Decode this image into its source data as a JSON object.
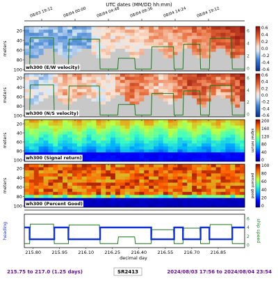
{
  "top_axis": {
    "label": "UTC dates (MM/DD hh:mm)",
    "ticks": [
      "08/03 19:12",
      "08/04 00:00",
      "08/04 04:48",
      "08/04 09:36",
      "08/04 14:24",
      "08/04 19:12"
    ]
  },
  "panels": [
    {
      "label": "wh300 (E/W velocity)",
      "ylabel": "meters",
      "yticks": [
        "20",
        "40",
        "60",
        "80",
        "100"
      ],
      "colorbar_ticks": [
        "0.6",
        "0.4",
        "0.2",
        "0.0",
        "-0.2",
        "-0.4",
        "-0.6"
      ],
      "right_axis_ticks": [
        "6",
        "4",
        "2",
        "0"
      ],
      "colormap": "blue-white-red"
    },
    {
      "label": "wh300 (N/S velocity)",
      "ylabel": "meters",
      "yticks": [
        "20",
        "40",
        "60",
        "80",
        "100"
      ],
      "colorbar_ticks": [
        "0.6",
        "0.4",
        "0.2",
        "0.0",
        "-0.2",
        "-0.4",
        "-0.6"
      ],
      "right_axis_ticks": [
        "6",
        "4",
        "2",
        "0"
      ],
      "colormap": "blue-white-red"
    },
    {
      "label": "wh300 (Signal return)",
      "ylabel": "meters",
      "yticks": [
        "20",
        "40",
        "60",
        "80",
        "100"
      ],
      "colorbar_label": "signal return",
      "colorbar_ticks": [
        "200",
        "160",
        "120",
        "80",
        "40",
        "0"
      ],
      "colormap": "jet"
    },
    {
      "label": "wh300 (Percent Good)",
      "ylabel": "meters",
      "yticks": [
        "20",
        "40",
        "60",
        "80",
        "100"
      ],
      "colorbar_label": "percent good",
      "colorbar_ticks": [
        "100",
        "80",
        "60",
        "40",
        "20",
        "0"
      ],
      "colormap": "jet"
    }
  ],
  "bottom_panel": {
    "ylabel_left": "heading",
    "ylabel_right": "ship speed",
    "right_ticks": [
      "6",
      "4",
      "2",
      "0"
    ],
    "xlabel": "decimal day",
    "xticks": [
      "215.80",
      "215.95",
      "216.10",
      "216.25",
      "216.40",
      "216.55",
      "216.70",
      "216.85"
    ]
  },
  "footer": {
    "range": "215.75 to 217.0 (1.25 days)",
    "cruise": "SR2413",
    "dates": "2024/08/03 17:56 to 2024/08/04 23:54"
  },
  "colors": {
    "footer_text": "#6a0f9a",
    "ship_speed": "#1a7a1a",
    "heading": "#1030d0",
    "bad_data": "#c8c8c8"
  },
  "chart_data": {
    "type": "heatmap",
    "x_unit": "decimal day",
    "xlim": [
      215.75,
      217.0
    ],
    "depth_ylim_m": [
      100,
      10
    ],
    "ship_speed_ylim_kn": [
      0,
      7
    ],
    "ship_speed_segments": [
      {
        "x": [
          215.78,
          215.92
        ],
        "speed": 5.2
      },
      {
        "x": [
          216.0,
          216.18
        ],
        "speed": 5.0
      },
      {
        "x": [
          216.28,
          216.38
        ],
        "speed": 2.0
      },
      {
        "x": [
          216.47,
          216.6
        ],
        "speed": 3.8
      },
      {
        "x": [
          216.65,
          216.75
        ],
        "speed": 4.2
      },
      {
        "x": [
          216.8,
          216.93
        ],
        "speed": 5.1
      }
    ],
    "heading_segments": [
      {
        "x": [
          215.75,
          215.78
        ],
        "level": "mid"
      },
      {
        "x": [
          215.78,
          215.92
        ],
        "level": "low"
      },
      {
        "x": [
          215.92,
          216.0
        ],
        "level": "mid"
      },
      {
        "x": [
          216.0,
          216.18
        ],
        "level": "low"
      },
      {
        "x": [
          216.18,
          216.47
        ],
        "level": "mid"
      },
      {
        "x": [
          216.47,
          216.6
        ],
        "level": "low"
      },
      {
        "x": [
          216.6,
          216.65
        ],
        "level": "mid"
      },
      {
        "x": [
          216.65,
          216.75
        ],
        "level": "low"
      },
      {
        "x": [
          216.75,
          216.8
        ],
        "level": "mid"
      },
      {
        "x": [
          216.8,
          216.93
        ],
        "level": "low"
      },
      {
        "x": [
          216.93,
          217.0
        ],
        "level": "mid"
      }
    ]
  }
}
